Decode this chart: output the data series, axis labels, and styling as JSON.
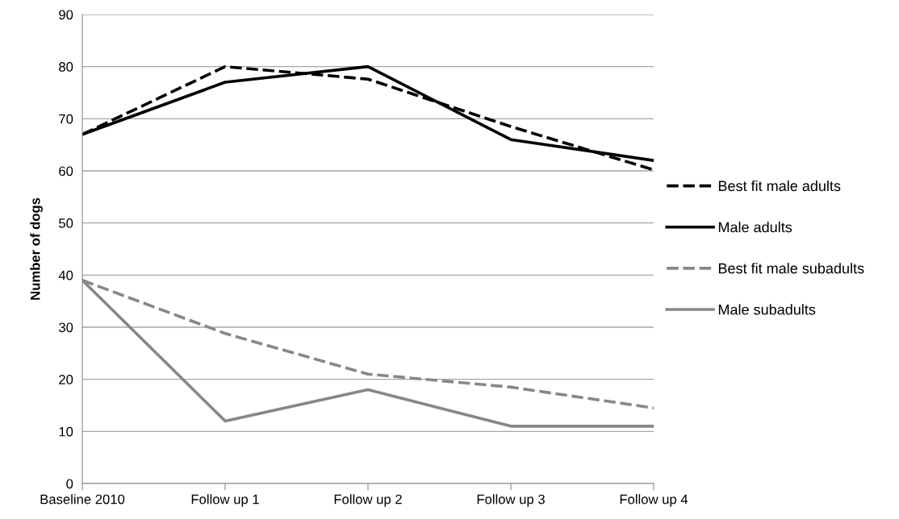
{
  "chart_data": {
    "type": "line",
    "ylabel": "Number of dogs",
    "categories": [
      "Baseline 2010",
      "Follow up 1",
      "Follow up 2",
      "Follow up 3",
      "Follow up 4"
    ],
    "series": [
      {
        "name": "Best fit male adults",
        "color": "#000000",
        "line_style": "dashed",
        "values": [
          67,
          80,
          77.6,
          68.5,
          60.2
        ]
      },
      {
        "name": "Male adults",
        "color": "#000000",
        "line_style": "solid",
        "values": [
          67,
          77,
          80,
          66,
          62
        ]
      },
      {
        "name": "Best fit male subadults",
        "color": "#878787",
        "line_style": "dashed",
        "values": [
          39,
          28.8,
          21,
          18.5,
          14.5
        ]
      },
      {
        "name": "Male subadults",
        "color": "#878787",
        "line_style": "solid",
        "values": [
          39,
          12,
          18,
          11,
          11
        ]
      }
    ],
    "ylim": [
      0,
      90
    ],
    "yticks": [
      0,
      10,
      20,
      30,
      40,
      50,
      60,
      70,
      80,
      90
    ],
    "grid": "y",
    "legend": "right",
    "marker": "none"
  }
}
